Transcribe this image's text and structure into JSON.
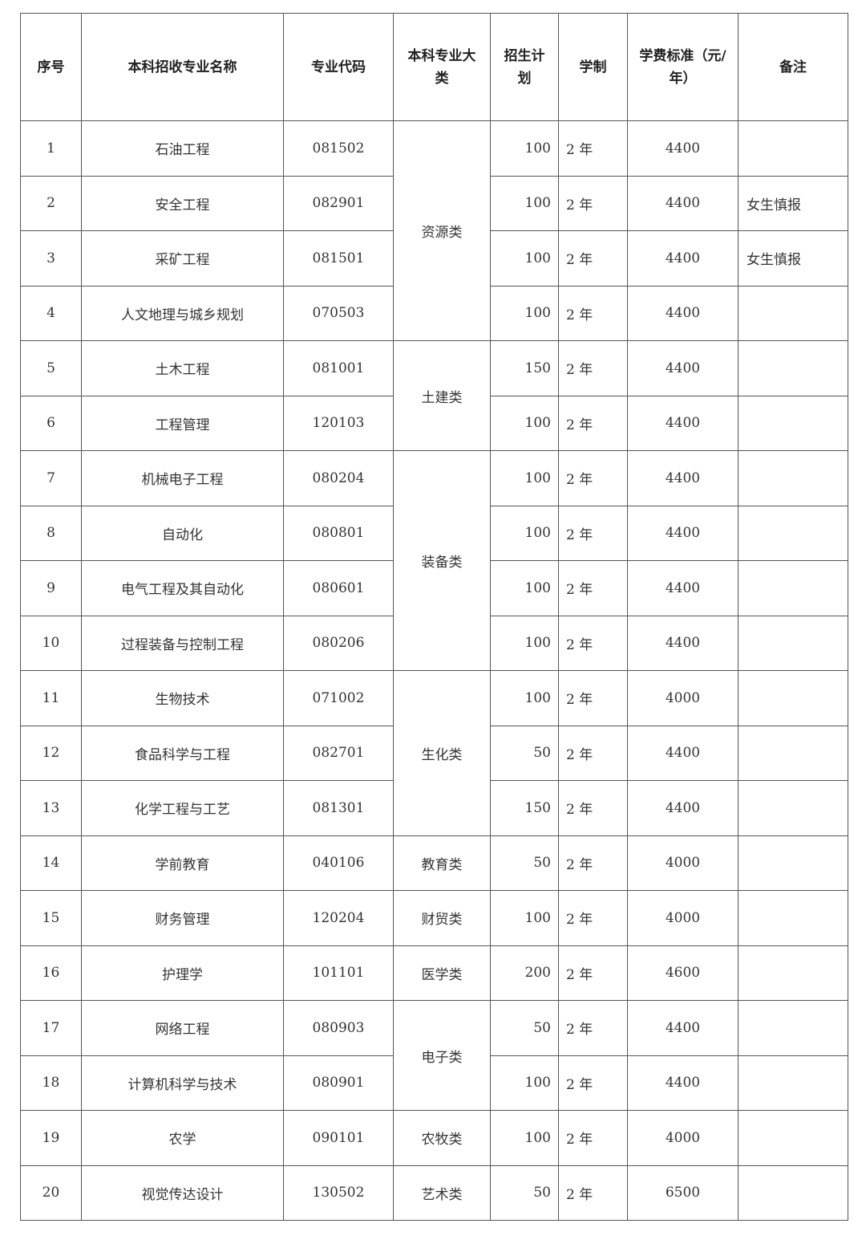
{
  "headers": [
    "序号",
    "本科招收专业名称",
    "专业代码",
    "本科专业大类",
    "招生计划",
    "学制",
    "学费标准（元/年）",
    "备注"
  ],
  "groups": [
    {
      "category": "资源类",
      "rows": [
        {
          "no": "1",
          "name": "石油工程",
          "code": "081502",
          "plan": "100",
          "duration": "2 年",
          "fee": "4400",
          "note": ""
        },
        {
          "no": "2",
          "name": "安全工程",
          "code": "082901",
          "plan": "100",
          "duration": "2 年",
          "fee": "4400",
          "note": "女生慎报"
        },
        {
          "no": "3",
          "name": "采矿工程",
          "code": "081501",
          "plan": "100",
          "duration": "2 年",
          "fee": "4400",
          "note": "女生慎报"
        },
        {
          "no": "4",
          "name": "人文地理与城乡规划",
          "code": "070503",
          "plan": "100",
          "duration": "2 年",
          "fee": "4400",
          "note": ""
        }
      ]
    },
    {
      "category": "土建类",
      "rows": [
        {
          "no": "5",
          "name": "土木工程",
          "code": "081001",
          "plan": "150",
          "duration": "2 年",
          "fee": "4400",
          "note": ""
        },
        {
          "no": "6",
          "name": "工程管理",
          "code": "120103",
          "plan": "100",
          "duration": "2 年",
          "fee": "4400",
          "note": ""
        }
      ]
    },
    {
      "category": "装备类",
      "rows": [
        {
          "no": "7",
          "name": "机械电子工程",
          "code": "080204",
          "plan": "100",
          "duration": "2 年",
          "fee": "4400",
          "note": ""
        },
        {
          "no": "8",
          "name": "自动化",
          "code": "080801",
          "plan": "100",
          "duration": "2 年",
          "fee": "4400",
          "note": ""
        },
        {
          "no": "9",
          "name": "电气工程及其自动化",
          "code": "080601",
          "plan": "100",
          "duration": "2 年",
          "fee": "4400",
          "note": ""
        },
        {
          "no": "10",
          "name": "过程装备与控制工程",
          "code": "080206",
          "plan": "100",
          "duration": "2 年",
          "fee": "4400",
          "note": ""
        }
      ]
    },
    {
      "category": "生化类",
      "rows": [
        {
          "no": "11",
          "name": "生物技术",
          "code": "071002",
          "plan": "100",
          "duration": "2 年",
          "fee": "4000",
          "note": ""
        },
        {
          "no": "12",
          "name": "食品科学与工程",
          "code": "082701",
          "plan": "50",
          "duration": "2 年",
          "fee": "4400",
          "note": ""
        },
        {
          "no": "13",
          "name": "化学工程与工艺",
          "code": "081301",
          "plan": "150",
          "duration": "2 年",
          "fee": "4400",
          "note": ""
        }
      ]
    },
    {
      "category": "教育类",
      "rows": [
        {
          "no": "14",
          "name": "学前教育",
          "code": "040106",
          "plan": "50",
          "duration": "2 年",
          "fee": "4000",
          "note": ""
        }
      ]
    },
    {
      "category": "财贸类",
      "rows": [
        {
          "no": "15",
          "name": "财务管理",
          "code": "120204",
          "plan": "100",
          "duration": "2 年",
          "fee": "4000",
          "note": ""
        }
      ]
    },
    {
      "category": "医学类",
      "rows": [
        {
          "no": "16",
          "name": "护理学",
          "code": "101101",
          "plan": "200",
          "duration": "2 年",
          "fee": "4600",
          "note": ""
        }
      ]
    },
    {
      "category": "电子类",
      "rows": [
        {
          "no": "17",
          "name": "网络工程",
          "code": "080903",
          "plan": "50",
          "duration": "2 年",
          "fee": "4400",
          "note": ""
        },
        {
          "no": "18",
          "name": "计算机科学与技术",
          "code": "080901",
          "plan": "100",
          "duration": "2 年",
          "fee": "4400",
          "note": ""
        }
      ]
    },
    {
      "category": "农牧类",
      "rows": [
        {
          "no": "19",
          "name": "农学",
          "code": "090101",
          "plan": "100",
          "duration": "2 年",
          "fee": "4000",
          "note": ""
        }
      ]
    },
    {
      "category": "艺术类",
      "rows": [
        {
          "no": "20",
          "name": "视觉传达设计",
          "code": "130502",
          "plan": "50",
          "duration": "2 年",
          "fee": "6500",
          "note": ""
        }
      ]
    }
  ]
}
